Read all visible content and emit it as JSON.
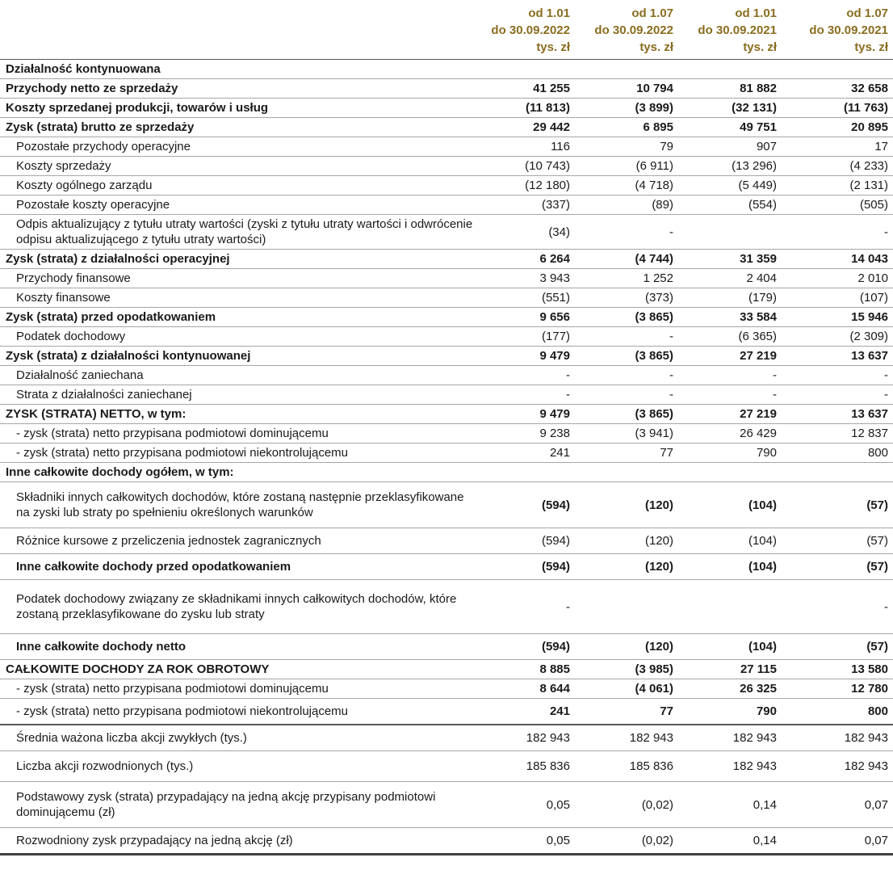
{
  "colors": {
    "header_text": "#8a6d1f",
    "row_line": "#a6a6a6",
    "dark_line": "#595959",
    "thick_line": "#404040",
    "text": "#1a1a1a"
  },
  "table": {
    "header_columns": [
      {
        "period_from": "od 1.01",
        "period_to": "do 30.09.2022",
        "unit": "tys. zł"
      },
      {
        "period_from": "od 1.07",
        "period_to": "do 30.09.2022",
        "unit": "tys. zł"
      },
      {
        "period_from": "od 1.01",
        "period_to": "do 30.09.2021",
        "unit": "tys. zł"
      },
      {
        "period_from": "od 1.07",
        "period_to": "do 30.09.2021",
        "unit": "tys. zł"
      }
    ],
    "rows": [
      {
        "label": "Działalność kontynuowana",
        "values": [
          "",
          "",
          "",
          ""
        ],
        "label_bold": true,
        "values_bold": false,
        "indent": false,
        "pad": "s",
        "border": "light"
      },
      {
        "label": "Przychody netto ze sprzedaży",
        "values": [
          "41 255",
          "10 794",
          "81 882",
          "32 658"
        ],
        "label_bold": true,
        "values_bold": true,
        "indent": false,
        "pad": "s",
        "border": "light"
      },
      {
        "label": "Koszty sprzedanej produkcji, towarów i usług",
        "values": [
          "(11 813)",
          "(3 899)",
          "(32 131)",
          "(11 763)"
        ],
        "label_bold": true,
        "values_bold": true,
        "indent": false,
        "pad": "s",
        "border": "light"
      },
      {
        "label": "Zysk (strata) brutto ze sprzedaży",
        "values": [
          "29 442",
          "6 895",
          "49 751",
          "20 895"
        ],
        "label_bold": true,
        "values_bold": true,
        "indent": false,
        "pad": "s",
        "border": "light"
      },
      {
        "label": "Pozostałe przychody operacyjne",
        "values": [
          "116",
          "79",
          "907",
          "17"
        ],
        "label_bold": false,
        "values_bold": false,
        "indent": true,
        "pad": "s",
        "border": "light"
      },
      {
        "label": "Koszty sprzedaży",
        "values": [
          "(10 743)",
          "(6 911)",
          "(13 296)",
          "(4 233)"
        ],
        "label_bold": false,
        "values_bold": false,
        "indent": true,
        "pad": "s",
        "border": "light"
      },
      {
        "label": "Koszty ogólnego zarządu",
        "values": [
          "(12 180)",
          "(4 718)",
          "(5 449)",
          "(2 131)"
        ],
        "label_bold": false,
        "values_bold": false,
        "indent": true,
        "pad": "s",
        "border": "light"
      },
      {
        "label": "Pozostałe koszty operacyjne",
        "values": [
          "(337)",
          "(89)",
          "(554)",
          "(505)"
        ],
        "label_bold": false,
        "values_bold": false,
        "indent": true,
        "pad": "s",
        "border": "light"
      },
      {
        "label": "Odpis aktualizujący z tytułu utraty wartości (zyski z tytułu utraty wartości i odwrócenie odpisu aktualizującego z tytułu utraty wartości)",
        "values": [
          "(34)",
          "-",
          "",
          "-"
        ],
        "label_bold": false,
        "values_bold": false,
        "indent": true,
        "pad": "s",
        "border": "light"
      },
      {
        "label": "Zysk (strata) z działalności operacyjnej",
        "values": [
          "6 264",
          "(4 744)",
          "31 359",
          "14 043"
        ],
        "label_bold": true,
        "values_bold": true,
        "indent": false,
        "pad": "s",
        "border": "light"
      },
      {
        "label": "Przychody finansowe",
        "values": [
          "3 943",
          "1 252",
          "2 404",
          "2 010"
        ],
        "label_bold": false,
        "values_bold": false,
        "indent": true,
        "pad": "s",
        "border": "light"
      },
      {
        "label": "Koszty finansowe",
        "values": [
          "(551)",
          "(373)",
          "(179)",
          "(107)"
        ],
        "label_bold": false,
        "values_bold": false,
        "indent": true,
        "pad": "s",
        "border": "light"
      },
      {
        "label": "Zysk (strata) przed opodatkowaniem",
        "values": [
          "9 656",
          "(3 865)",
          "33 584",
          "15 946"
        ],
        "label_bold": true,
        "values_bold": true,
        "indent": false,
        "pad": "s",
        "border": "light"
      },
      {
        "label": "Podatek dochodowy",
        "values": [
          "(177)",
          "-",
          "(6 365)",
          "(2 309)"
        ],
        "label_bold": false,
        "values_bold": false,
        "indent": true,
        "pad": "s",
        "border": "light"
      },
      {
        "label": "Zysk (strata) z działalności kontynuowanej",
        "values": [
          "9 479",
          "(3 865)",
          "27 219",
          "13 637"
        ],
        "label_bold": true,
        "values_bold": true,
        "indent": false,
        "pad": "s",
        "border": "light"
      },
      {
        "label": "Działalność zaniechana",
        "values": [
          "-",
          "-",
          "-",
          "-"
        ],
        "label_bold": false,
        "values_bold": false,
        "indent": true,
        "pad": "s",
        "border": "light"
      },
      {
        "label": "Strata z działalności zaniechanej",
        "values": [
          "-",
          "-",
          "-",
          "-"
        ],
        "label_bold": false,
        "values_bold": false,
        "indent": true,
        "pad": "s",
        "border": "light"
      },
      {
        "label": "ZYSK (STRATA) NETTO, w tym:",
        "values": [
          "9 479",
          "(3 865)",
          "27 219",
          "13 637"
        ],
        "label_bold": true,
        "values_bold": true,
        "indent": false,
        "pad": "s",
        "border": "light"
      },
      {
        "label": "- zysk (strata) netto przypisana podmiotowi dominującemu",
        "values": [
          "9 238",
          "(3 941)",
          "26 429",
          "12 837"
        ],
        "label_bold": false,
        "values_bold": false,
        "indent": true,
        "pad": "s",
        "border": "light"
      },
      {
        "label": "- zysk (strata) netto przypisana podmiotowi niekontrolującemu",
        "values": [
          "241",
          "77",
          "790",
          "800"
        ],
        "label_bold": false,
        "values_bold": false,
        "indent": true,
        "pad": "s",
        "border": "light"
      },
      {
        "label": "Inne całkowite dochody ogółem, w tym:",
        "values": [
          "",
          "",
          "",
          ""
        ],
        "label_bold": true,
        "values_bold": false,
        "indent": false,
        "pad": "s",
        "border": "light"
      },
      {
        "label": "Składniki innych całkowitych dochodów, które zostaną następnie przeklasyfikowane na zyski lub straty po spełnieniu określonych warunków",
        "values": [
          "(594)",
          "(120)",
          "(104)",
          "(57)"
        ],
        "label_bold": false,
        "values_bold": true,
        "indent": true,
        "pad": "l",
        "border": "light"
      },
      {
        "label": "Różnice kursowe z przeliczenia jednostek zagranicznych",
        "values": [
          "(594)",
          "(120)",
          "(104)",
          "(57)"
        ],
        "label_bold": false,
        "values_bold": false,
        "indent": true,
        "pad": "m",
        "border": "light"
      },
      {
        "label": "Inne całkowite dochody przed opodatkowaniem",
        "values": [
          "(594)",
          "(120)",
          "(104)",
          "(57)"
        ],
        "label_bold": true,
        "values_bold": true,
        "indent": true,
        "pad": "m",
        "border": "light"
      },
      {
        "label": "Podatek dochodowy związany ze składnikami innych całkowitych dochodów, które zostaną przeklasyfikowane do zysku lub straty",
        "values": [
          "-",
          "",
          "",
          "-"
        ],
        "label_bold": false,
        "values_bold": false,
        "indent": true,
        "pad": "xl",
        "border": "light"
      },
      {
        "label": "Inne całkowite dochody netto",
        "values": [
          "(594)",
          "(120)",
          "(104)",
          "(57)"
        ],
        "label_bold": true,
        "values_bold": true,
        "indent": true,
        "pad": "m",
        "border": "light"
      },
      {
        "label": "CAŁKOWITE DOCHODY ZA ROK OBROTOWY",
        "values": [
          "8 885",
          "(3 985)",
          "27 115",
          "13 580"
        ],
        "label_bold": true,
        "values_bold": true,
        "indent": false,
        "pad": "s",
        "border": "light"
      },
      {
        "label": "- zysk (strata) netto przypisana podmiotowi dominującemu",
        "values": [
          "8 644",
          "(4 061)",
          "26 325",
          "12 780"
        ],
        "label_bold": false,
        "values_bold": true,
        "indent": true,
        "pad": "s",
        "border": "light"
      },
      {
        "label": "- zysk (strata) netto przypisana podmiotowi niekontrolującemu",
        "values": [
          "241",
          "77",
          "790",
          "800"
        ],
        "label_bold": false,
        "values_bold": true,
        "indent": true,
        "pad": "m",
        "border": "dark"
      },
      {
        "label": "Średnia ważona liczba akcji zwykłych (tys.)",
        "values": [
          "182 943",
          "182 943",
          "182 943",
          "182 943"
        ],
        "label_bold": false,
        "values_bold": false,
        "indent": true,
        "pad": "m",
        "border": "light"
      },
      {
        "label": "Liczba akcji rozwodnionych (tys.)",
        "values": [
          "185 836",
          "185 836",
          "182 943",
          "182 943"
        ],
        "label_bold": false,
        "values_bold": false,
        "indent": true,
        "pad": "l",
        "border": "light"
      },
      {
        "label": "Podstawowy zysk (strata) przypadający na jedną akcję przypisany podmiotowi dominującemu (zł)",
        "values": [
          "0,05",
          "(0,02)",
          "0,14",
          "0,07"
        ],
        "label_bold": false,
        "values_bold": false,
        "indent": true,
        "pad": "l",
        "border": "light"
      },
      {
        "label": "Rozwodniony zysk przypadający na jedną akcję (zł)",
        "values": [
          "0,05",
          "(0,02)",
          "0,14",
          "0,07"
        ],
        "label_bold": false,
        "values_bold": false,
        "indent": true,
        "pad": "m",
        "border": "thick"
      }
    ]
  }
}
